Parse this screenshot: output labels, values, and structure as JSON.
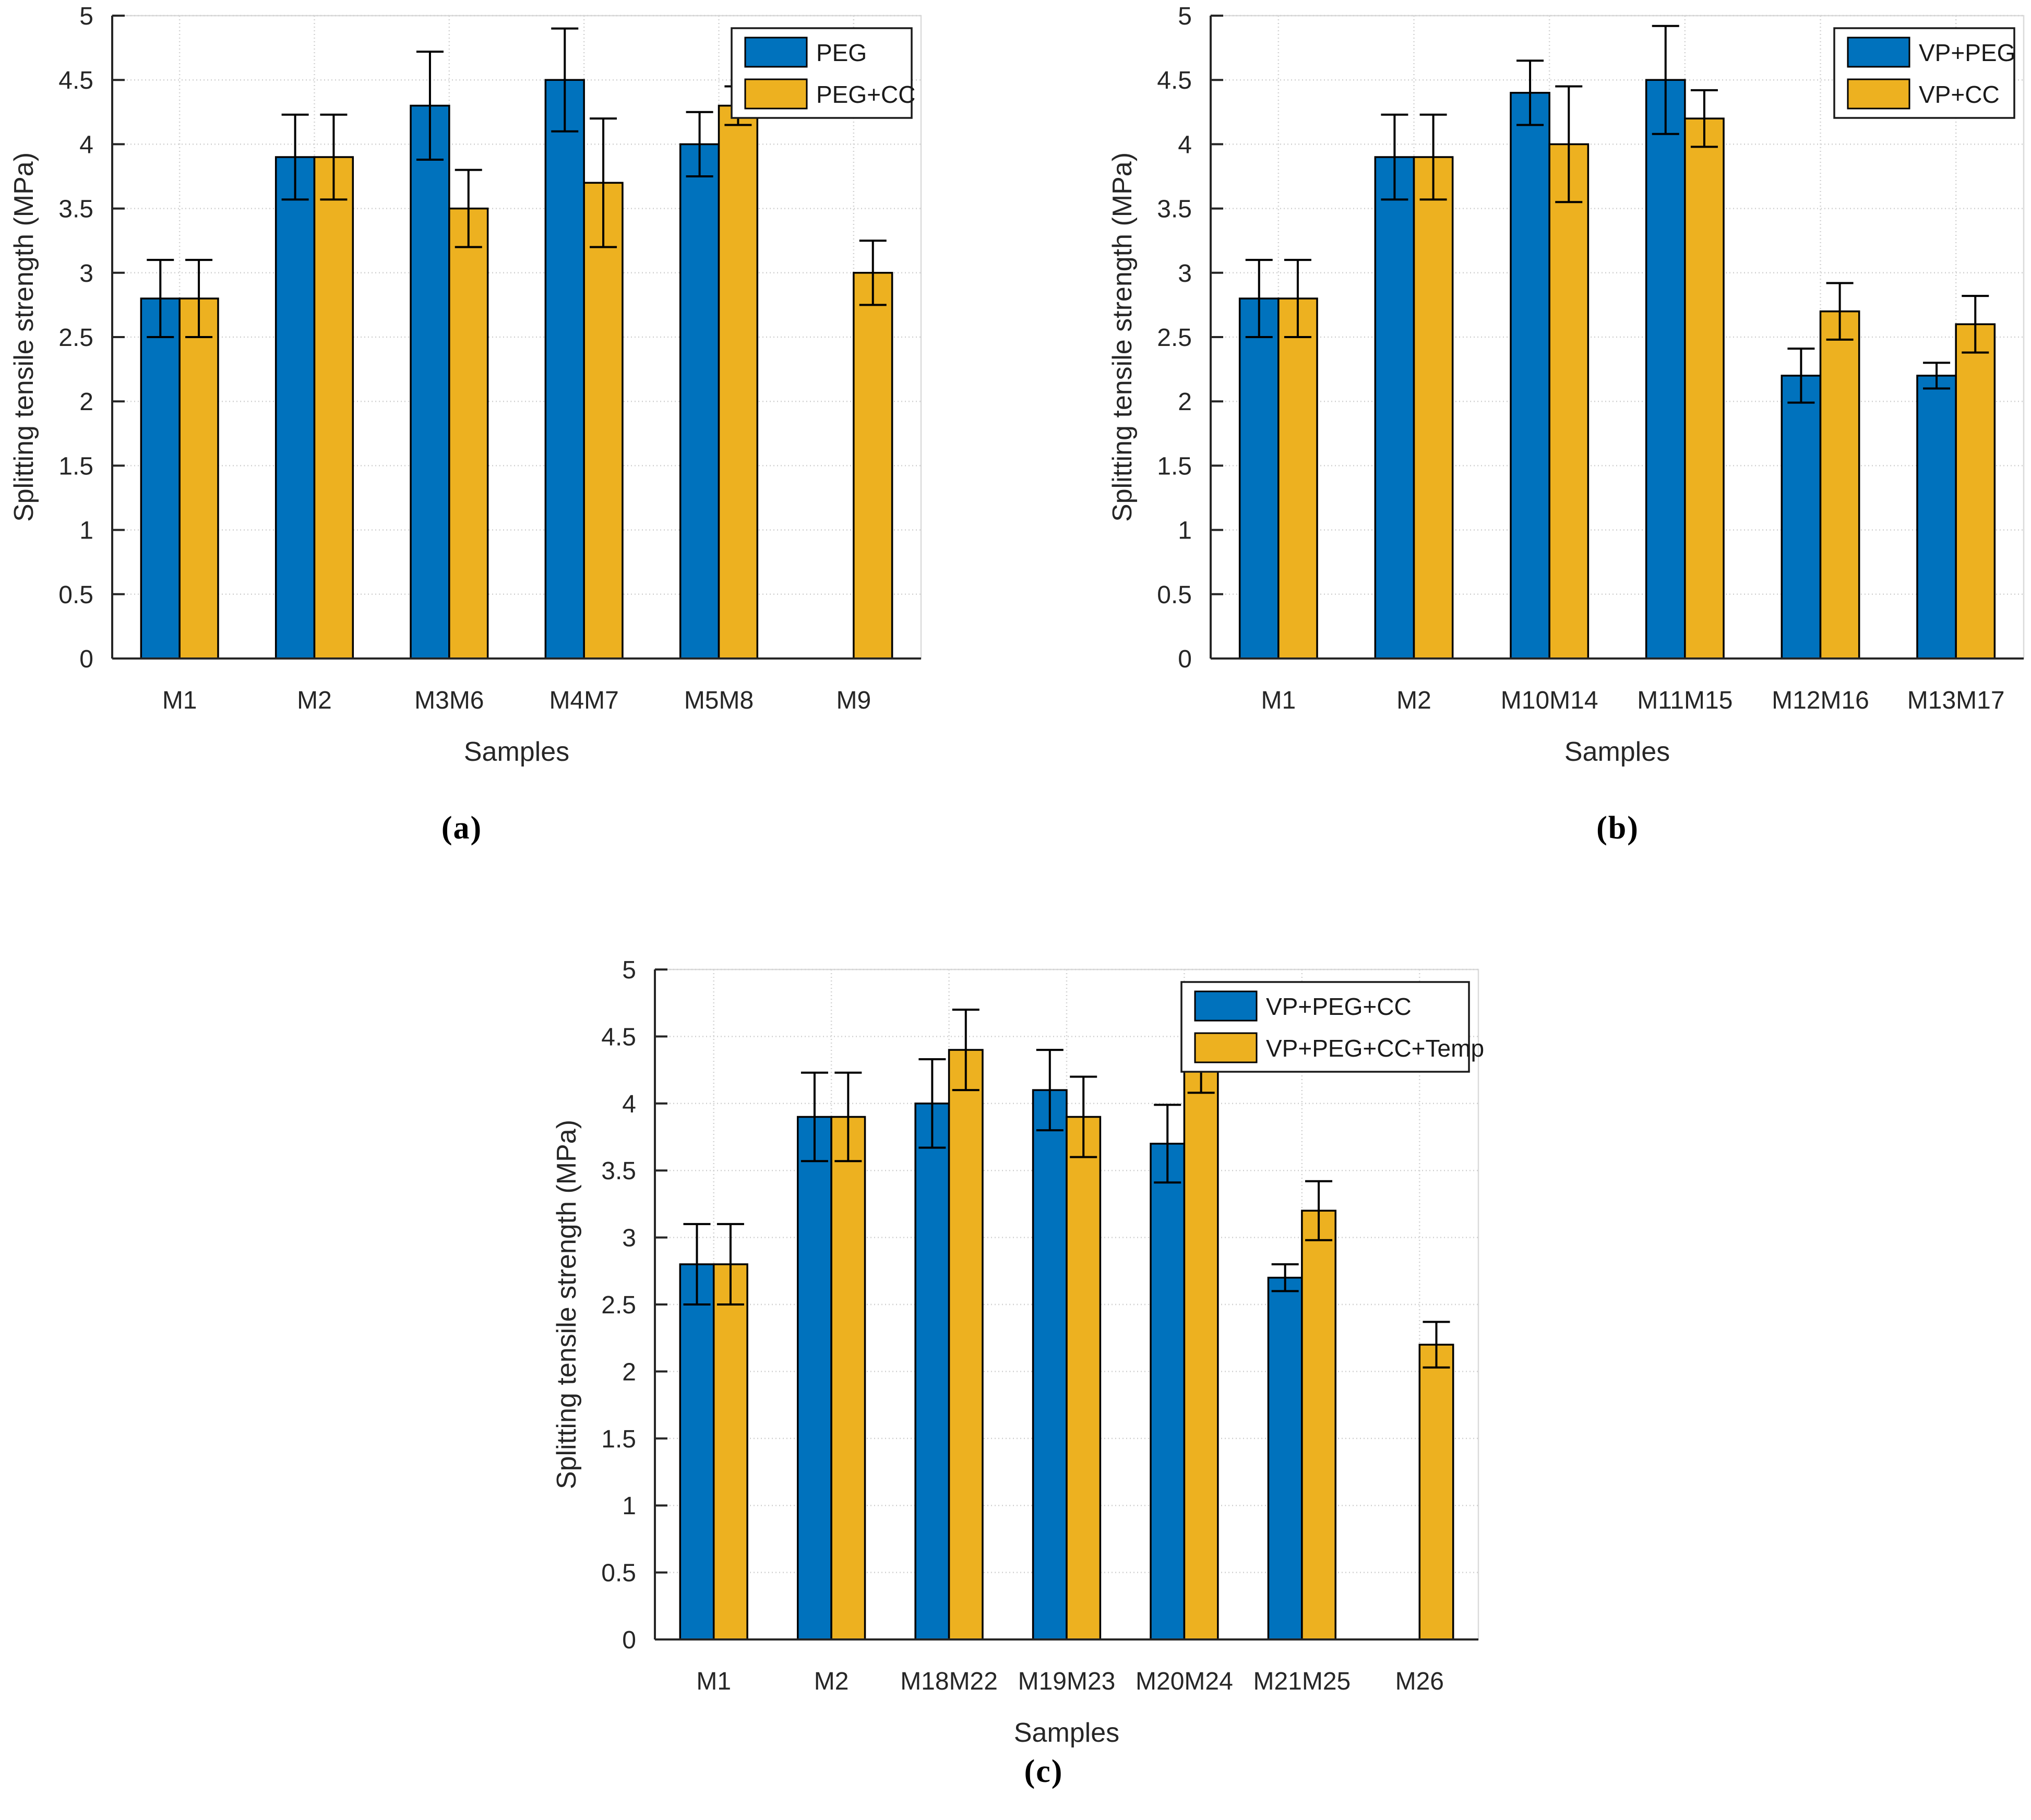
{
  "figure": {
    "background": "#ffffff",
    "text_color": "#262626",
    "bar_edge_color": "#000000",
    "error_bar_color": "#000000",
    "grid_color": "#d0d0d0",
    "legend_border_color": "#1a1a1a",
    "panel_labels": [
      "(a)",
      "(b)",
      "(c)"
    ]
  },
  "chart_data": [
    {
      "type": "bar",
      "panel_label": "(a)",
      "title": "",
      "xlabel": "Samples",
      "ylabel": "Splitting tensile strength (MPa)",
      "ylim": [
        0,
        5
      ],
      "ytick_step": 0.5,
      "ytick_labels": [
        "0",
        "0.5",
        "1",
        "1.5",
        "2",
        "2.5",
        "3",
        "3.5",
        "4",
        "4.5",
        "5"
      ],
      "grid": true,
      "error_bars": true,
      "legend_position": "top-right",
      "categories": [
        "M1",
        "M2",
        "M3M6",
        "M4M7",
        "M5M8",
        "M9"
      ],
      "series": [
        {
          "name": "PEG",
          "color": "#0072BD",
          "values": [
            2.8,
            3.9,
            4.3,
            4.5,
            4.0,
            null
          ],
          "errors": [
            0.3,
            0.33,
            0.42,
            0.4,
            0.25,
            null
          ]
        },
        {
          "name": "PEG+CC",
          "color": "#EDB120",
          "values": [
            2.8,
            3.9,
            3.5,
            3.7,
            4.3,
            3.0
          ],
          "errors": [
            0.3,
            0.33,
            0.3,
            0.5,
            0.15,
            0.25
          ]
        }
      ]
    },
    {
      "type": "bar",
      "panel_label": "(b)",
      "title": "",
      "xlabel": "Samples",
      "ylabel": "Splitting tensile strength (MPa)",
      "ylim": [
        0,
        5
      ],
      "ytick_step": 0.5,
      "ytick_labels": [
        "0",
        "0.5",
        "1",
        "1.5",
        "2",
        "2.5",
        "3",
        "3.5",
        "4",
        "4.5",
        "5"
      ],
      "grid": true,
      "error_bars": true,
      "legend_position": "top-right",
      "categories": [
        "M1",
        "M2",
        "M10M14",
        "M11M15",
        "M12M16",
        "M13M17"
      ],
      "series": [
        {
          "name": "VP+PEG",
          "color": "#0072BD",
          "values": [
            2.8,
            3.9,
            4.4,
            4.5,
            2.2,
            2.2
          ],
          "errors": [
            0.3,
            0.33,
            0.25,
            0.42,
            0.21,
            0.1
          ]
        },
        {
          "name": "VP+CC",
          "color": "#EDB120",
          "values": [
            2.8,
            3.9,
            4.0,
            4.2,
            2.7,
            2.6
          ],
          "errors": [
            0.3,
            0.33,
            0.45,
            0.22,
            0.22,
            0.22
          ]
        }
      ]
    },
    {
      "type": "bar",
      "panel_label": "(c)",
      "title": "",
      "xlabel": "Samples",
      "ylabel": "Splitting tensile strength (MPa)",
      "ylim": [
        0,
        5
      ],
      "ytick_step": 0.5,
      "ytick_labels": [
        "0",
        "0.5",
        "1",
        "1.5",
        "2",
        "2.5",
        "3",
        "3.5",
        "4",
        "4.5",
        "5"
      ],
      "grid": true,
      "error_bars": true,
      "legend_position": "top-right",
      "categories": [
        "M1",
        "M2",
        "M18M22",
        "M19M23",
        "M20M24",
        "M21M25",
        "M26"
      ],
      "series": [
        {
          "name": "VP+PEG+CC",
          "color": "#0072BD",
          "values": [
            2.8,
            3.9,
            4.0,
            4.1,
            3.7,
            2.7,
            null
          ],
          "errors": [
            0.3,
            0.33,
            0.33,
            0.3,
            0.29,
            0.1,
            null
          ]
        },
        {
          "name": "VP+PEG+CC+Temp",
          "color": "#EDB120",
          "values": [
            2.8,
            3.9,
            4.4,
            3.9,
            4.3,
            3.2,
            2.2
          ],
          "errors": [
            0.3,
            0.33,
            0.3,
            0.3,
            0.22,
            0.22,
            0.17
          ]
        }
      ]
    }
  ]
}
